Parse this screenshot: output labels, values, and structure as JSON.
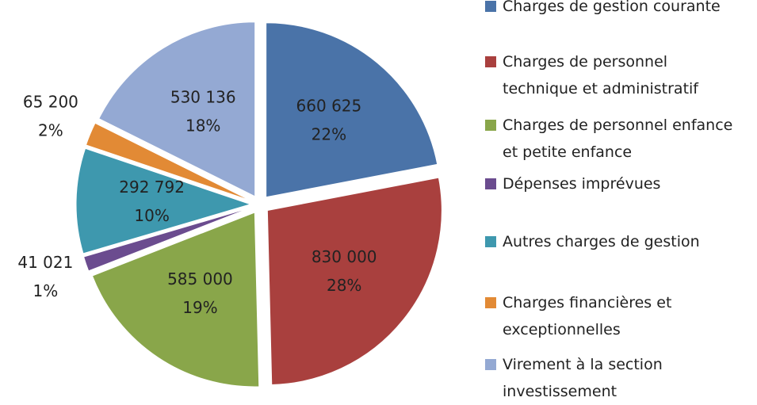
{
  "chart_data": {
    "type": "pie",
    "categories": [
      "Charges de gestion courante",
      "Charges de personnel technique et administratif",
      "Charges de personnel enfance et petite enfance",
      "Dépenses imprévues",
      "Autres charges de gestion",
      "Charges financières et exceptionnelles",
      "Virement à la section investissement"
    ],
    "values": [
      660625,
      830000,
      585000,
      41021,
      292792,
      65200,
      530136
    ],
    "value_labels": [
      "660 625",
      "830 000",
      "585 000",
      "41 021",
      "292 792",
      "65 200",
      "530 136"
    ],
    "percent_labels": [
      "22%",
      "28%",
      "19%",
      "1%",
      "10%",
      "2%",
      "18%"
    ],
    "colors": [
      "#4a73a8",
      "#a9403e",
      "#89a64a",
      "#6b4c8f",
      "#3e98ae",
      "#e28a35",
      "#94a9d3"
    ],
    "legend": "right"
  }
}
